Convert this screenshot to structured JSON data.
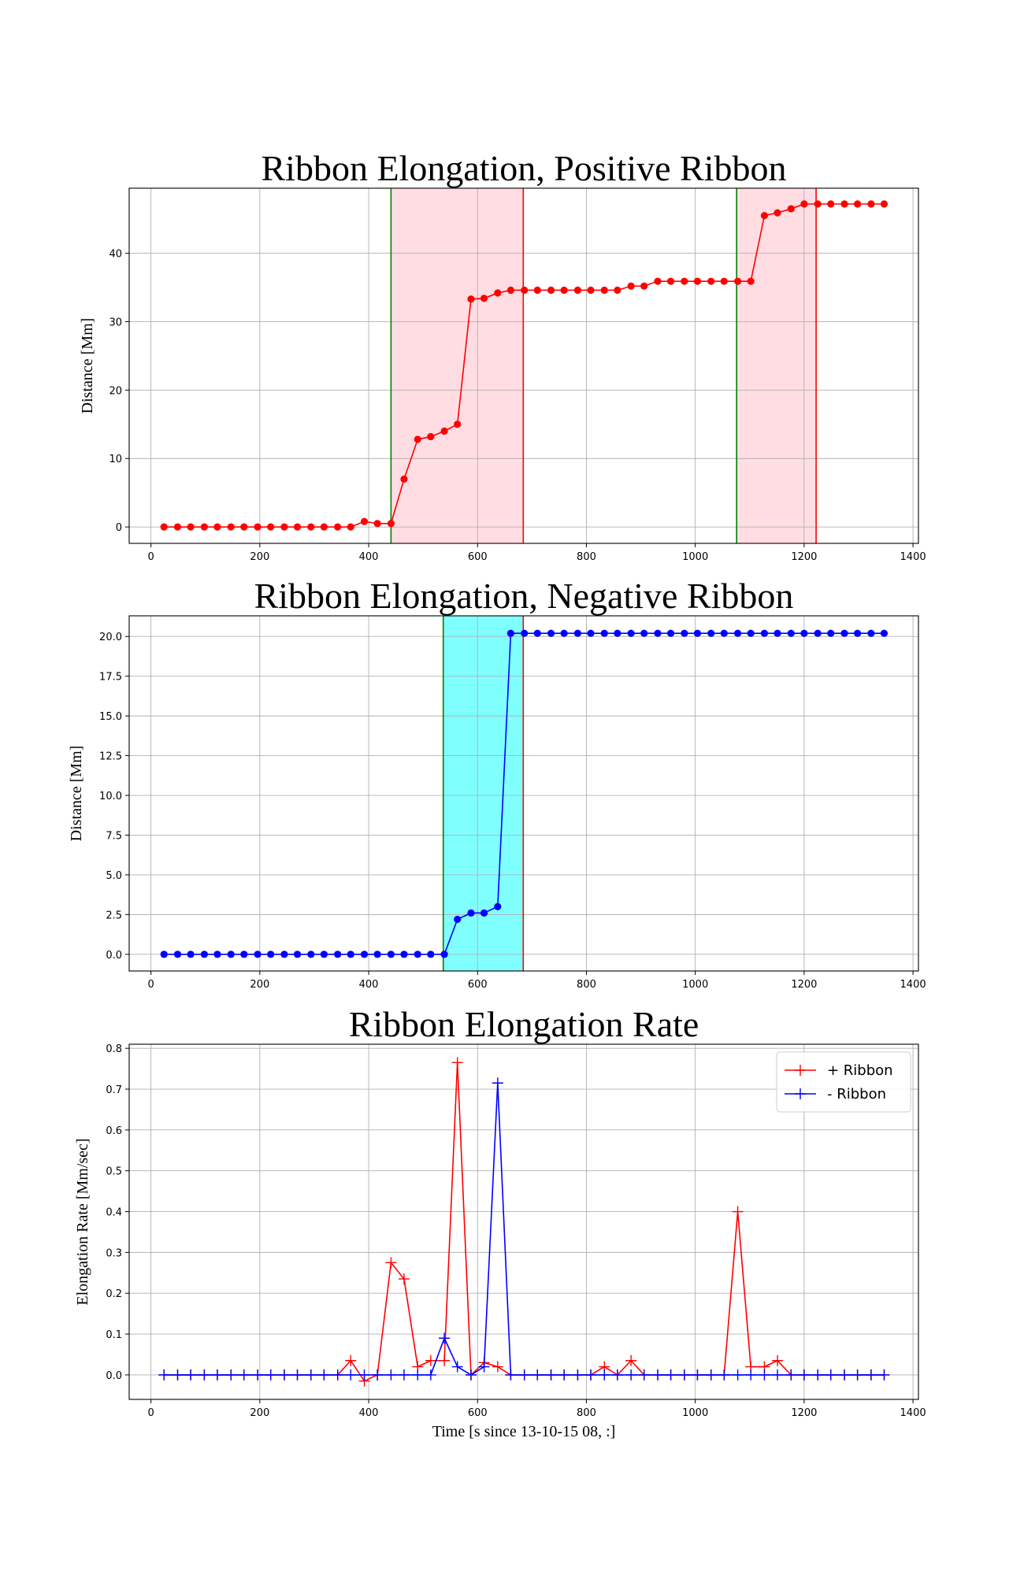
{
  "chart_data": [
    {
      "type": "line",
      "title": "Ribbon Elongation, Positive Ribbon",
      "xlabel": "",
      "ylabel": "Distance [Mm]",
      "xlim": [
        -40,
        1410
      ],
      "ylim": [
        -2.4,
        49.5
      ],
      "xticks": [
        0,
        200,
        400,
        600,
        800,
        1000,
        1200,
        1400
      ],
      "yticks": [
        0,
        10,
        20,
        30,
        40
      ],
      "ytick_labels": [
        "0",
        "10",
        "20",
        "30",
        "40"
      ],
      "grid": true,
      "marker": "circle",
      "series": [
        {
          "color": "#ff0000",
          "x": [
            24,
            49,
            73,
            98,
            122,
            147,
            171,
            196,
            220,
            245,
            269,
            294,
            318,
            343,
            367,
            392,
            416,
            441,
            465,
            490,
            514,
            539,
            563,
            588,
            612,
            637,
            661,
            686,
            710,
            735,
            759,
            784,
            808,
            833,
            857,
            882,
            906,
            931,
            955,
            980,
            1004,
            1029,
            1053,
            1078,
            1102,
            1127,
            1151,
            1176,
            1200,
            1225,
            1249,
            1274,
            1298,
            1323,
            1347
          ],
          "y": [
            0,
            0,
            0,
            0,
            0,
            0,
            0,
            0,
            0,
            0,
            0,
            0,
            0,
            0,
            0,
            0.8,
            0.5,
            0.5,
            7,
            12.8,
            13.2,
            14,
            15,
            33.3,
            33.4,
            34.2,
            34.6,
            34.6,
            34.6,
            34.6,
            34.6,
            34.6,
            34.6,
            34.6,
            34.6,
            35.2,
            35.2,
            35.9,
            35.9,
            35.9,
            35.9,
            35.9,
            35.9,
            35.9,
            35.9,
            45.5,
            45.9,
            46.5,
            47.2,
            47.2,
            47.2,
            47.2,
            47.2,
            47.2,
            47.2
          ]
        }
      ],
      "shaded_regions": [
        {
          "x0": 441,
          "x1": 684,
          "fill": "#ffdde3"
        },
        {
          "x0": 1076,
          "x1": 1222,
          "fill": "#ffdde3"
        }
      ],
      "vlines": [
        {
          "x": 441,
          "color": "#008000"
        },
        {
          "x": 684,
          "color": "#ff0000"
        },
        {
          "x": 1076,
          "color": "#008000"
        },
        {
          "x": 1222,
          "color": "#ff0000"
        }
      ]
    },
    {
      "type": "line",
      "title": "Ribbon Elongation, Negative Ribbon",
      "xlabel": "",
      "ylabel": "Distance [Mm]",
      "xlim": [
        -40,
        1410
      ],
      "ylim": [
        -1.05,
        21.3
      ],
      "xticks": [
        0,
        200,
        400,
        600,
        800,
        1000,
        1200,
        1400
      ],
      "yticks": [
        0,
        2.5,
        5,
        7.5,
        10,
        12.5,
        15,
        17.5,
        20
      ],
      "ytick_labels": [
        "0.0",
        "2.5",
        "5.0",
        "7.5",
        "10.0",
        "12.5",
        "15.0",
        "17.5",
        "20.0"
      ],
      "grid": true,
      "marker": "circle",
      "series": [
        {
          "color": "#0000ff",
          "x": [
            24,
            49,
            73,
            98,
            122,
            147,
            171,
            196,
            220,
            245,
            269,
            294,
            318,
            343,
            367,
            392,
            416,
            441,
            465,
            490,
            514,
            539,
            563,
            588,
            612,
            637,
            661,
            686,
            710,
            735,
            759,
            784,
            808,
            833,
            857,
            882,
            906,
            931,
            955,
            980,
            1004,
            1029,
            1053,
            1078,
            1102,
            1127,
            1151,
            1176,
            1200,
            1225,
            1249,
            1274,
            1298,
            1323,
            1347
          ],
          "y": [
            0,
            0,
            0,
            0,
            0,
            0,
            0,
            0,
            0,
            0,
            0,
            0,
            0,
            0,
            0,
            0,
            0,
            0,
            0,
            0,
            0,
            0,
            2.2,
            2.6,
            2.6,
            3,
            20.2,
            20.2,
            20.2,
            20.2,
            20.2,
            20.2,
            20.2,
            20.2,
            20.2,
            20.2,
            20.2,
            20.2,
            20.2,
            20.2,
            20.2,
            20.2,
            20.2,
            20.2,
            20.2,
            20.2,
            20.2,
            20.2,
            20.2,
            20.2,
            20.2,
            20.2,
            20.2,
            20.2,
            20.2
          ]
        }
      ],
      "shaded_regions": [
        {
          "x0": 537,
          "x1": 684,
          "fill": "#80ffff"
        }
      ],
      "vlines": [
        {
          "x": 537,
          "color": "#008000"
        },
        {
          "x": 684,
          "color": "#ff0000"
        }
      ]
    },
    {
      "type": "line",
      "title": "Ribbon Elongation Rate",
      "xlabel": "Time [s since 13-10-15 08, :]",
      "ylabel": "Elongation Rate [Mm/sec]",
      "xlim": [
        -40,
        1410
      ],
      "ylim": [
        -0.06,
        0.81
      ],
      "xticks": [
        0,
        200,
        400,
        600,
        800,
        1000,
        1200,
        1400
      ],
      "yticks": [
        0,
        0.1,
        0.2,
        0.3,
        0.4,
        0.5,
        0.6,
        0.7,
        0.8
      ],
      "ytick_labels": [
        "0.0",
        "0.1",
        "0.2",
        "0.3",
        "0.4",
        "0.5",
        "0.6",
        "0.7",
        "0.8"
      ],
      "grid": true,
      "marker": "plus",
      "legend_position": "top-right",
      "series": [
        {
          "name": "+ Ribbon",
          "color": "#ff0000",
          "x": [
            24,
            49,
            73,
            98,
            122,
            147,
            171,
            196,
            220,
            245,
            269,
            294,
            318,
            343,
            367,
            392,
            416,
            441,
            465,
            490,
            514,
            539,
            563,
            588,
            612,
            637,
            661,
            686,
            710,
            735,
            759,
            784,
            808,
            833,
            857,
            882,
            906,
            931,
            955,
            980,
            1004,
            1029,
            1053,
            1078,
            1102,
            1127,
            1151,
            1176,
            1200,
            1225,
            1249,
            1274,
            1298,
            1323,
            1347
          ],
          "y": [
            0,
            0,
            0,
            0,
            0,
            0,
            0,
            0,
            0,
            0,
            0,
            0,
            0,
            0,
            0.035,
            -0.015,
            0,
            0.275,
            0.235,
            0.02,
            0.035,
            0.035,
            0.765,
            0,
            0.03,
            0.02,
            0,
            0,
            0,
            0,
            0,
            0,
            0,
            0.02,
            0,
            0.035,
            0,
            0,
            0,
            0,
            0,
            0,
            0,
            0.4,
            0.02,
            0.02,
            0.035,
            0,
            0,
            0,
            0,
            0,
            0,
            0,
            0
          ]
        },
        {
          "name": "- Ribbon",
          "color": "#0000ff",
          "x": [
            24,
            49,
            73,
            98,
            122,
            147,
            171,
            196,
            220,
            245,
            269,
            294,
            318,
            343,
            367,
            392,
            416,
            441,
            465,
            490,
            514,
            539,
            563,
            588,
            612,
            637,
            661,
            686,
            710,
            735,
            759,
            784,
            808,
            833,
            857,
            882,
            906,
            931,
            955,
            980,
            1004,
            1029,
            1053,
            1078,
            1102,
            1127,
            1151,
            1176,
            1200,
            1225,
            1249,
            1274,
            1298,
            1323,
            1347
          ],
          "y": [
            0,
            0,
            0,
            0,
            0,
            0,
            0,
            0,
            0,
            0,
            0,
            0,
            0,
            0,
            0,
            0,
            0,
            0,
            0,
            0,
            0,
            0.09,
            0.02,
            0,
            0.02,
            0.715,
            0,
            0,
            0,
            0,
            0,
            0,
            0,
            0,
            0,
            0,
            0,
            0,
            0,
            0,
            0,
            0,
            0,
            0,
            0,
            0,
            0,
            0,
            0,
            0,
            0,
            0,
            0,
            0,
            0
          ]
        }
      ]
    }
  ]
}
